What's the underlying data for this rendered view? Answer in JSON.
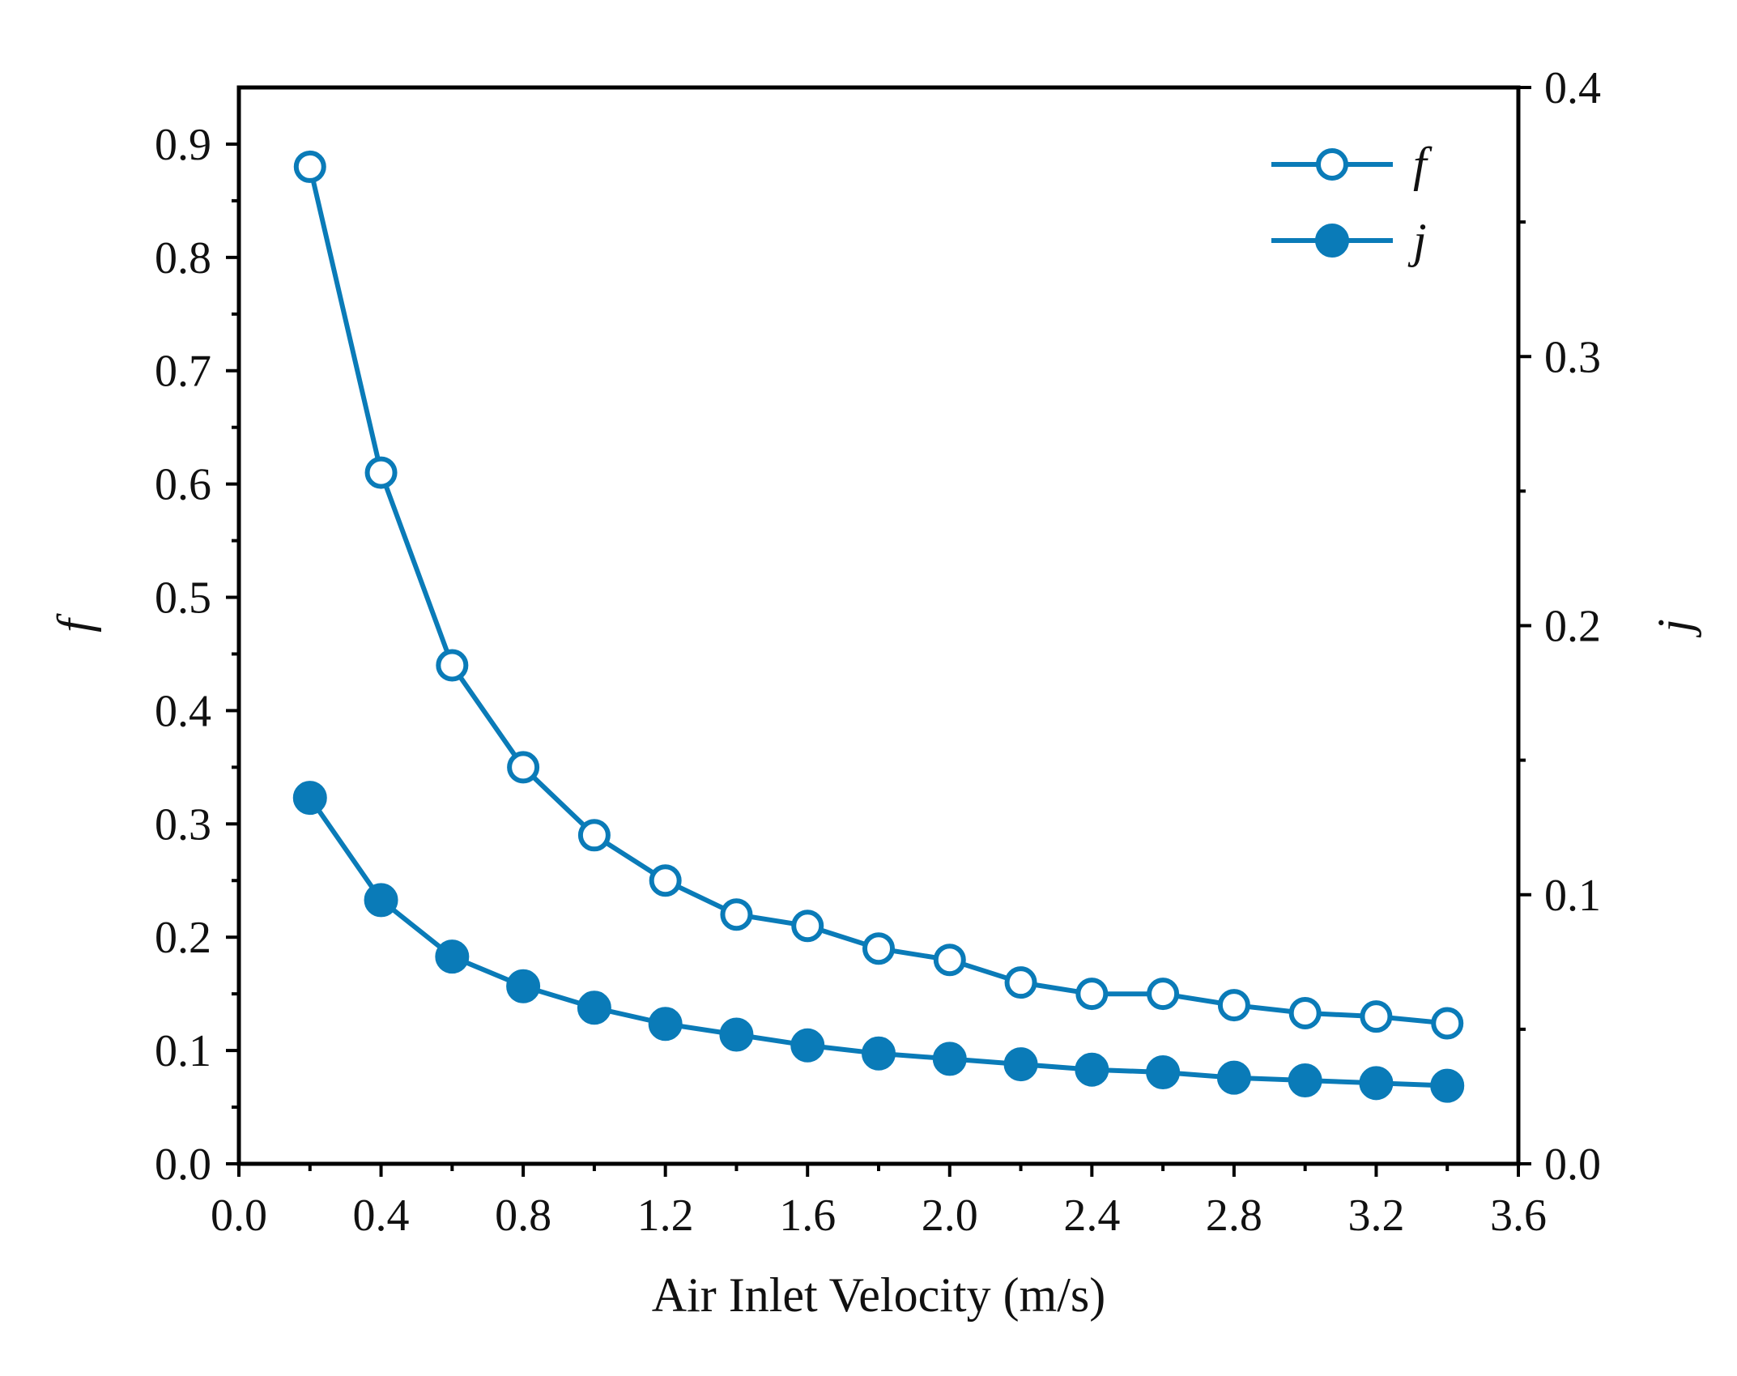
{
  "chart_data": {
    "type": "line",
    "title": "",
    "xlabel": "Air Inlet Velocity (m/s)",
    "ylabel_left": "f",
    "ylabel_right": "j",
    "xlim": [
      0.0,
      3.6
    ],
    "ylim_left": [
      0.0,
      0.95
    ],
    "ylim_right": [
      0.0,
      0.4
    ],
    "x_ticks": [
      "0.0",
      "0.4",
      "0.8",
      "1.2",
      "1.6",
      "2.0",
      "2.4",
      "2.8",
      "3.2",
      "3.6"
    ],
    "y_left_ticks": [
      "0.0",
      "0.1",
      "0.2",
      "0.3",
      "0.4",
      "0.5",
      "0.6",
      "0.7",
      "0.8",
      "0.9"
    ],
    "y_right_ticks": [
      "0.0",
      "0.1",
      "0.2",
      "0.3",
      "0.4"
    ],
    "grid": false,
    "legend_position": "top-right",
    "color": "#0a7bb8",
    "x": [
      0.2,
      0.4,
      0.6,
      0.8,
      1.0,
      1.2,
      1.4,
      1.6,
      1.8,
      2.0,
      2.2,
      2.4,
      2.6,
      2.8,
      3.0,
      3.2,
      3.4
    ],
    "series": [
      {
        "name": "f",
        "axis": "left",
        "marker": "open-circle",
        "values": [
          0.88,
          0.61,
          0.44,
          0.35,
          0.29,
          0.25,
          0.22,
          0.21,
          0.19,
          0.18,
          0.16,
          0.15,
          0.15,
          0.14,
          0.133,
          0.13,
          0.124
        ]
      },
      {
        "name": "j",
        "axis": "right",
        "marker": "filled-circle",
        "values": [
          0.136,
          0.098,
          0.077,
          0.066,
          0.058,
          0.052,
          0.048,
          0.044,
          0.041,
          0.039,
          0.037,
          0.035,
          0.034,
          0.032,
          0.031,
          0.03,
          0.029
        ]
      }
    ]
  }
}
